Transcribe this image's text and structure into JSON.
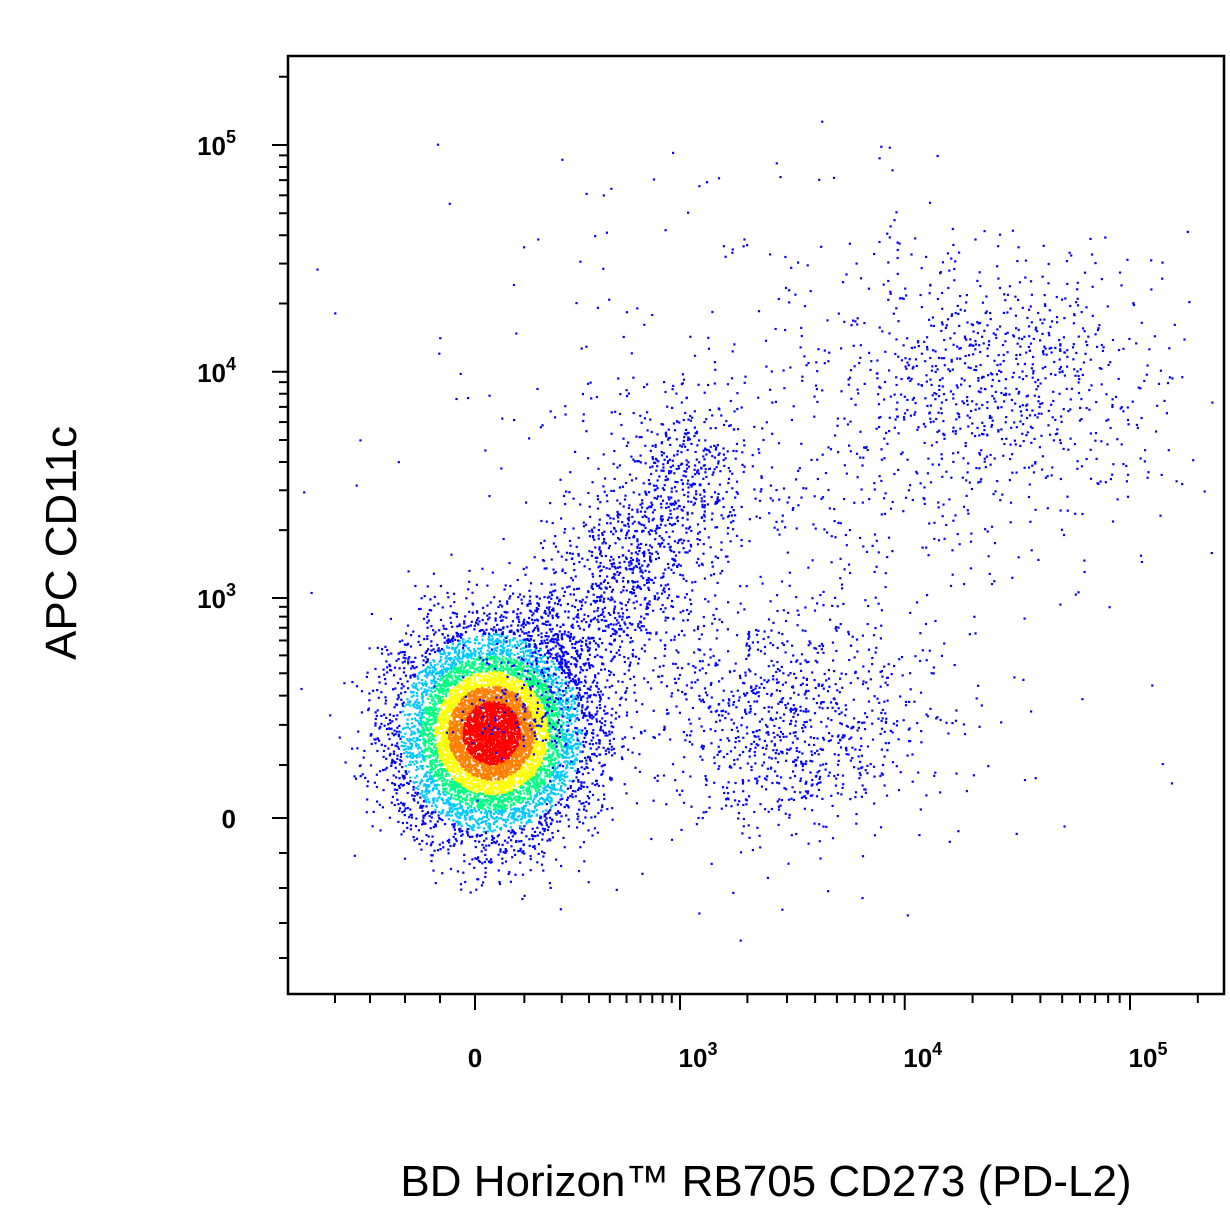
{
  "chart_data": {
    "type": "scatter",
    "title": "",
    "xlabel": "BD Horizon™ RB705 CD273 (PD-L2)",
    "ylabel": "APC CD11c",
    "x_scale": "biexponential",
    "y_scale": "biexponential",
    "x_ticks": [
      {
        "value": 0,
        "label": "0"
      },
      {
        "value": 1000,
        "label": "10",
        "exp": "3"
      },
      {
        "value": 10000,
        "label": "10",
        "exp": "4"
      },
      {
        "value": 100000,
        "label": "10",
        "exp": "5"
      }
    ],
    "y_ticks": [
      {
        "value": 0,
        "label": "0"
      },
      {
        "value": 1000,
        "label": "10",
        "exp": "3"
      },
      {
        "value": 10000,
        "label": "10",
        "exp": "4"
      },
      {
        "value": 100000,
        "label": "10",
        "exp": "5"
      }
    ],
    "xlim": [
      -450,
      262144
    ],
    "ylim": [
      -450,
      262144
    ],
    "density_colormap": [
      "#0000ff",
      "#00c8ff",
      "#00ff80",
      "#ffff00",
      "#ff8000",
      "#ff0000"
    ],
    "populations": [
      {
        "name": "",
        "x_center": 30,
        "y_center": 180,
        "count": 9000,
        "color_scale": "density"
      },
      {
        "name": "",
        "x_center": 3000,
        "y_center": 200,
        "count": 900,
        "color_scale": "density"
      },
      {
        "name": "",
        "x_center": 25000,
        "y_center": 9000,
        "count": 800,
        "color_scale": "density"
      },
      {
        "name": "",
        "x_center": 3000,
        "y_center": 3000,
        "count": 700,
        "color_scale": "density"
      }
    ]
  }
}
